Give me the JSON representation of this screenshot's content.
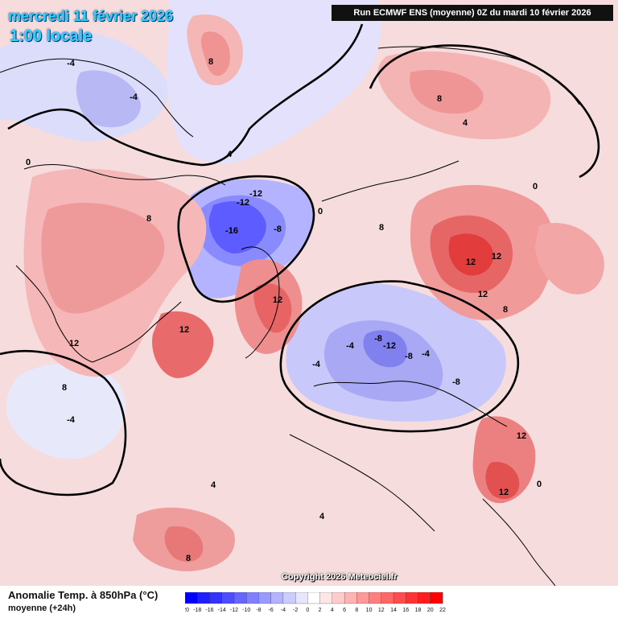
{
  "header": {
    "date": "mercredi 11 février 2026",
    "time": "1:00 locale",
    "run": "Run ECMWF ENS (moyenne) 0Z du mardi 10 février 2026"
  },
  "footer": {
    "title": "Anomalie Temp. à 850hPa (°C)",
    "subtitle": "moyenne   (+24h)",
    "copyright": "Copyright 2026 Meteociel.fr"
  },
  "legend": {
    "ticks": [
      "-20",
      "-18",
      "-16",
      "-14",
      "-12",
      "-10",
      "-8",
      "-6",
      "-4",
      "-2",
      "0",
      "2",
      "4",
      "6",
      "8",
      "10",
      "12",
      "14",
      "16",
      "18",
      "20",
      "22"
    ],
    "colors": [
      "#0000ff",
      "#1e1eff",
      "#3333ff",
      "#4d4dff",
      "#6666ff",
      "#7f7fff",
      "#9999ff",
      "#b3b3ff",
      "#ccccff",
      "#e6e6ff",
      "#ffffff",
      "#ffe6e6",
      "#ffcccc",
      "#ffb3b3",
      "#ff9999",
      "#ff7f7f",
      "#ff6666",
      "#ff4d4d",
      "#ff3333",
      "#ff1e1e",
      "#ff0000"
    ]
  },
  "map": {
    "background": "#f6dcdc",
    "contour_labels": [
      {
        "text": "-16",
        "value": -16
      },
      {
        "text": "-12",
        "value": -12
      },
      {
        "text": "-12",
        "value": -12
      },
      {
        "text": "-8",
        "value": -8
      },
      {
        "text": "-8",
        "value": -8
      },
      {
        "text": "-8",
        "value": -8
      },
      {
        "text": "-4",
        "value": -4
      },
      {
        "text": "-4",
        "value": -4
      },
      {
        "text": "-4",
        "value": -4
      },
      {
        "text": "-4",
        "value": -4
      },
      {
        "text": "-4",
        "value": -4
      },
      {
        "text": "0",
        "value": 0
      },
      {
        "text": "0",
        "value": 0
      },
      {
        "text": "0",
        "value": 0
      },
      {
        "text": "0",
        "value": 0
      },
      {
        "text": "4",
        "value": 4
      },
      {
        "text": "4",
        "value": 4
      },
      {
        "text": "4",
        "value": 4
      },
      {
        "text": "4",
        "value": 4
      },
      {
        "text": "8",
        "value": 8
      },
      {
        "text": "8",
        "value": 8
      },
      {
        "text": "8",
        "value": 8
      },
      {
        "text": "8",
        "value": 8
      },
      {
        "text": "8",
        "value": 8
      },
      {
        "text": "8",
        "value": 8
      },
      {
        "text": "12",
        "value": 12
      },
      {
        "text": "12",
        "value": 12
      },
      {
        "text": "12",
        "value": 12
      },
      {
        "text": "12",
        "value": 12
      },
      {
        "text": "12",
        "value": 12
      },
      {
        "text": "12",
        "value": 12
      },
      {
        "text": "12",
        "value": 12
      },
      {
        "text": "-12",
        "value": -12
      },
      {
        "text": "-8",
        "value": -8
      },
      {
        "text": "-4",
        "value": -4
      },
      {
        "text": "8",
        "value": 8
      },
      {
        "text": "12",
        "value": 12
      }
    ]
  }
}
